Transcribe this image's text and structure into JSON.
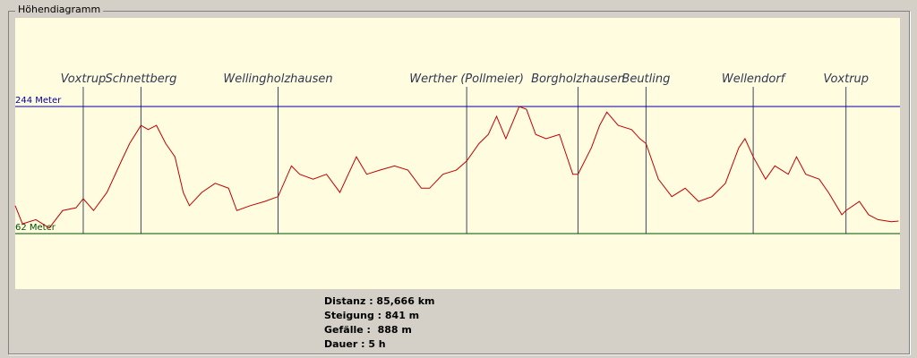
{
  "window": {
    "group_title": "Höhendiagramm"
  },
  "chart_data": {
    "type": "line",
    "xlim": [
      0,
      85.84
    ],
    "ylim": [
      -17.5,
      371
    ],
    "series": [
      {
        "name": null,
        "color": "#c00000",
        "x": [
          0,
          0.7,
          2.0,
          3.3,
          4.6,
          5.9,
          6.6,
          7.6,
          8.9,
          10.3,
          11.1,
          12.2,
          12.9,
          13.7,
          14.6,
          15.5,
          16.3,
          16.9,
          18.1,
          19.4,
          20.7,
          21.5,
          22.8,
          24.2,
          25.5,
          26.8,
          27.6,
          28.9,
          30.2,
          31.5,
          33.1,
          34.1,
          35.4,
          36.8,
          38.1,
          39.4,
          40.2,
          41.5,
          42.8,
          43.8,
          45.0,
          45.9,
          46.7,
          47.6,
          48.9,
          49.6,
          50.5,
          51.5,
          52.8,
          54.1,
          54.6,
          55.9,
          56.7,
          57.4,
          58.5,
          59.8,
          60.6,
          61.2,
          62.4,
          63.7,
          65.0,
          66.3,
          67.6,
          68.9,
          70.2,
          70.8,
          71.6,
          72.8,
          73.7,
          75.0,
          75.8,
          76.7,
          78.0,
          78.9,
          80.2,
          80.6,
          81.9,
          82.8,
          83.7,
          85.0,
          85.7
        ],
        "values": [
          102,
          76,
          82,
          70,
          95,
          99,
          112,
          95,
          121,
          166,
          191,
          217,
          211,
          217,
          191,
          172,
          121,
          102,
          121,
          134,
          127,
          95,
          102,
          108,
          115,
          159,
          147,
          140,
          147,
          121,
          172,
          147,
          153,
          159,
          153,
          127,
          127,
          147,
          153,
          166,
          191,
          204,
          230,
          198,
          244,
          240,
          204,
          198,
          204,
          147,
          147,
          185,
          217,
          236,
          217,
          211,
          198,
          191,
          140,
          115,
          127,
          108,
          115,
          134,
          185,
          198,
          172,
          140,
          159,
          147,
          172,
          147,
          140,
          121,
          89,
          95,
          108,
          89,
          82,
          79,
          80
        ]
      }
    ],
    "reference_lines": [
      {
        "value": 244,
        "label": "244 Meter",
        "color": "#0000a0"
      },
      {
        "value": 62,
        "label": "62 Meter",
        "color": "#005000"
      }
    ],
    "waypoints": [
      {
        "label": "Voxtrup",
        "x": 6.6
      },
      {
        "label": "Schnettberg",
        "x": 12.2
      },
      {
        "label": "Wellingholzhausen",
        "x": 25.5
      },
      {
        "label": "Werther (Pollmeier)",
        "x": 43.8
      },
      {
        "label": "Borgholzhausen",
        "x": 54.6
      },
      {
        "label": "Beutling",
        "x": 61.2
      },
      {
        "label": "Wellendorf",
        "x": 71.6
      },
      {
        "label": "Voxtrup",
        "x": 80.6
      }
    ]
  },
  "stats": [
    "Distanz : 85,666 km",
    "Steigung : 841 m",
    "Gefälle :  888 m",
    "Dauer : 5 h"
  ]
}
